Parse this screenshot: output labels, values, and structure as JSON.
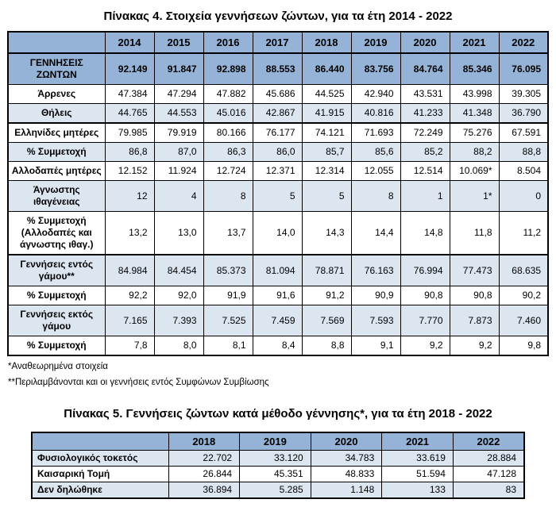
{
  "colors": {
    "header_blue": "#95B3D7",
    "row_light_blue": "#DCE6F1",
    "row_white": "#FFFFFF",
    "border": "#000000",
    "text": "#000000"
  },
  "table4": {
    "title": "Πίνακας 4. Στοιχεία γεννήσεων ζώντων, για τα έτη 2014 - 2022",
    "years": [
      "2014",
      "2015",
      "2016",
      "2017",
      "2018",
      "2019",
      "2020",
      "2021",
      "2022"
    ],
    "rows": [
      {
        "label": "ΓΕΝΝΗΣΕΙΣ ΖΩΝΤΩΝ",
        "style": "emphasis",
        "thick_top": true,
        "values": [
          "92.149",
          "91.847",
          "92.898",
          "88.553",
          "86.440",
          "83.756",
          "84.764",
          "85.346",
          "76.095"
        ]
      },
      {
        "label": "Άρρενες",
        "style": "white",
        "thick_top": false,
        "values": [
          "47.384",
          "47.294",
          "47.882",
          "45.686",
          "44.525",
          "42.940",
          "43.531",
          "43.998",
          "39.305"
        ]
      },
      {
        "label": "Θήλεις",
        "style": "blue",
        "thick_top": false,
        "values": [
          "44.765",
          "44.553",
          "45.016",
          "42.867",
          "41.915",
          "40.816",
          "41.233",
          "41.348",
          "36.790"
        ]
      },
      {
        "label": "Ελληνίδες μητέρες",
        "style": "white",
        "thick_top": true,
        "values": [
          "79.985",
          "79.919",
          "80.166",
          "76.177",
          "74.121",
          "71.693",
          "72.249",
          "75.276",
          "67.591"
        ]
      },
      {
        "label": "% Συμμετοχή",
        "style": "blue",
        "thick_top": false,
        "values": [
          "86,8",
          "87,0",
          "86,3",
          "86,0",
          "85,7",
          "85,6",
          "85,2",
          "88,2",
          "88,8"
        ]
      },
      {
        "label": "Αλλοδαπές μητέρες",
        "style": "white",
        "thick_top": false,
        "values": [
          "12.152",
          "11.924",
          "12.724",
          "12.371",
          "12.314",
          "12.055",
          "12.514",
          "10.069*",
          "8.504"
        ]
      },
      {
        "label": "Άγνωστης ιθαγένειας",
        "style": "blue",
        "thick_top": false,
        "values": [
          "12",
          "4",
          "8",
          "5",
          "5",
          "8",
          "1",
          "1*",
          "0"
        ]
      },
      {
        "label": "% Συμμετοχή (Αλλοδαπές και άγνωστης ιθαγ.)",
        "style": "white",
        "thick_top": false,
        "values": [
          "13,2",
          "13,0",
          "13,7",
          "14,0",
          "14,3",
          "14,4",
          "14,8",
          "11,8",
          "11,2"
        ]
      },
      {
        "label": "Γεννήσεις εντός γάμου**",
        "style": "blue",
        "thick_top": true,
        "values": [
          "84.984",
          "84.454",
          "85.373",
          "81.094",
          "78.871",
          "76.163",
          "76.994",
          "77.473",
          "68.635"
        ]
      },
      {
        "label": "% Συμμετοχή",
        "style": "white",
        "thick_top": false,
        "values": [
          "92,2",
          "92,0",
          "91,9",
          "91,6",
          "91,2",
          "90,9",
          "90,8",
          "90,8",
          "90,2"
        ]
      },
      {
        "label": "Γεννήσεις εκτός γάμου",
        "style": "blue",
        "thick_top": false,
        "values": [
          "7.165",
          "7.393",
          "7.525",
          "7.459",
          "7.569",
          "7.593",
          "7.770",
          "7.873",
          "7.460"
        ]
      },
      {
        "label": "% Συμμετοχή",
        "style": "white",
        "thick_top": false,
        "values": [
          "7,8",
          "8,0",
          "8,1",
          "8,4",
          "8,8",
          "9,1",
          "9,2",
          "9,2",
          "9,8"
        ]
      }
    ],
    "footnotes": [
      "*Αναθεωρημένα στοιχεία",
      "**Περιλαμβάνονται και οι γεννήσεις εντός Συμφώνων Συμβίωσης"
    ]
  },
  "table5": {
    "title": "Πίνακας 5. Γεννήσεις ζώντων κατά μέθοδο γέννησης*, για τα έτη 2018 - 2022",
    "years": [
      "2018",
      "2019",
      "2020",
      "2021",
      "2022"
    ],
    "rows": [
      {
        "label": "Φυσιολογικός τοκετός",
        "style": "blue",
        "thick_top": false,
        "values": [
          "22.702",
          "33.120",
          "34.783",
          "33.619",
          "28.884"
        ]
      },
      {
        "label": "Καισαρική Τομή",
        "style": "white",
        "thick_top": false,
        "values": [
          "26.844",
          "45.351",
          "48.833",
          "51.594",
          "47.128"
        ]
      },
      {
        "label": "Δεν δηλώθηκε",
        "style": "blue",
        "thick_top": false,
        "values": [
          "36.894",
          "5.285",
          "1.148",
          "133",
          "83"
        ]
      }
    ]
  }
}
